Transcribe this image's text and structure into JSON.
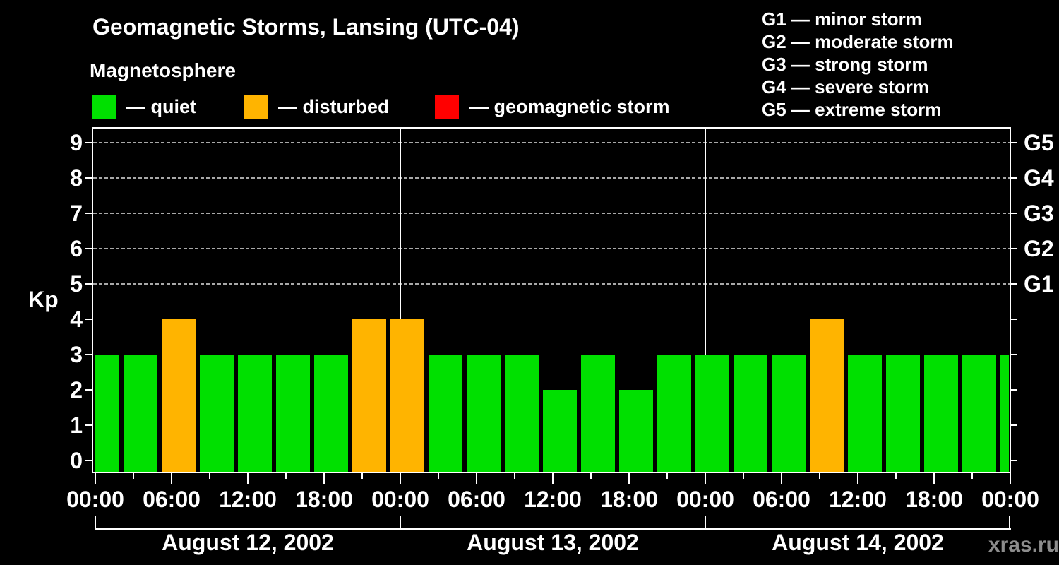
{
  "header": {
    "title": "Geomagnetic Storms, Lansing (UTC-04)",
    "subtitle": "Magnetosphere"
  },
  "legend": {
    "items": [
      {
        "name": "quiet",
        "swatch_color": "#00E000",
        "label": "— quiet"
      },
      {
        "name": "disturbed",
        "swatch_color": "#FFB400",
        "label": "— disturbed"
      },
      {
        "name": "storm",
        "swatch_color": "#FF0000",
        "label": "— geomagnetic storm"
      }
    ]
  },
  "g_scale_legend": {
    "lines": [
      "G1 — minor storm",
      "G2 — moderate storm",
      "G3 — strong storm",
      "G4 — severe storm",
      "G5 — extreme storm"
    ]
  },
  "watermark": "xras.ru",
  "chart_data": {
    "type": "bar",
    "title": "Geomagnetic Storms, Lansing (UTC-04)",
    "subtitle": "Magnetosphere",
    "xlabel": "",
    "ylabel": "Kp",
    "ylim": [
      0,
      9
    ],
    "bar_interval_hours": 3,
    "grid": "horizontal dashed lines at Kp 5-9 (G1-G5)",
    "grid_levels": [
      5,
      6,
      7,
      8,
      9
    ],
    "days": [
      {
        "date": "August 12, 2002",
        "kp": [
          3,
          3,
          4,
          3,
          3,
          3,
          3,
          4
        ]
      },
      {
        "date": "August 13, 2002",
        "kp": [
          4,
          3,
          3,
          3,
          2,
          3,
          2,
          3
        ]
      },
      {
        "date": "August 14, 2002",
        "kp": [
          3,
          3,
          3,
          4,
          3,
          3,
          3,
          3
        ]
      }
    ],
    "partial_next_day_kp": 3,
    "y_tick_labels": [
      "0",
      "1",
      "2",
      "3",
      "4",
      "5",
      "6",
      "7",
      "8",
      "9"
    ],
    "x_tick_labels": [
      "00:00",
      "06:00",
      "12:00",
      "18:00",
      "00:00",
      "06:00",
      "12:00",
      "18:00",
      "00:00",
      "06:00",
      "12:00",
      "18:00",
      "00:00"
    ],
    "right_axis_labels": [
      {
        "label": "G1",
        "kp": 5
      },
      {
        "label": "G2",
        "kp": 6
      },
      {
        "label": "G3",
        "kp": 7
      },
      {
        "label": "G4",
        "kp": 8
      },
      {
        "label": "G5",
        "kp": 9
      }
    ],
    "colors": {
      "quiet": "#00E000",
      "disturbed": "#FFB400",
      "storm": "#FF0000",
      "background": "#000000",
      "axis": "#FFFFFF",
      "gridline": "#9A9A9A",
      "watermark": "#8D8D8D"
    },
    "color_rule": "kp <= 3 quiet (green), kp = 4 disturbed (orange), kp >= 5 geomagnetic storm (red)",
    "legend_position": "top-left"
  }
}
